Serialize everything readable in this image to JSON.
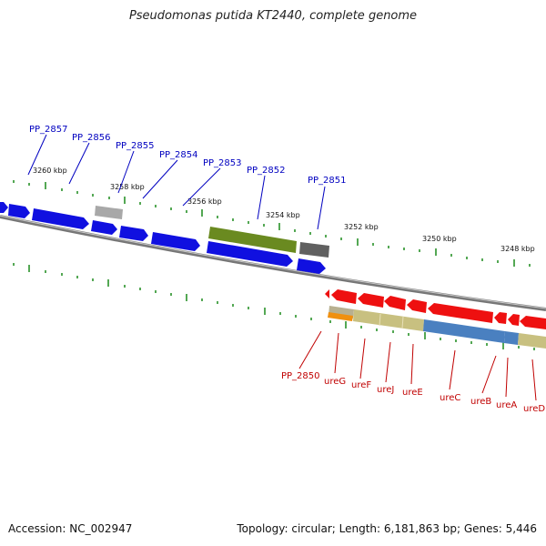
{
  "title": "Pseudomonas putida KT2440, complete genome",
  "footer": {
    "accession": "Accession: NC_002947",
    "summary": "Topology: circular; Length: 6,181,863 bp; Genes: 5,446"
  },
  "scale_labels": [
    "3260 kbp",
    "3258 kbp",
    "3256 kbp",
    "3254 kbp",
    "3252 kbp",
    "3250 kbp",
    "3248 kbp"
  ],
  "upper_gene_labels": [
    "PP_2857",
    "PP_2856",
    "PP_2855",
    "PP_2854",
    "PP_2853",
    "PP_2852",
    "PP_2851"
  ],
  "lower_gene_labels": [
    "PP_2850",
    "ureG",
    "ureF",
    "ureJ",
    "ureE",
    "ureC",
    "ureB",
    "ureA",
    "ureD"
  ],
  "colors": {
    "forward_gene": "#1010e0",
    "reverse_gene": "#ee1010",
    "grey_gene": "#a8a8a8",
    "dark_grey_gene": "#606060",
    "green_gene": "#6a8a20",
    "khaki_feature": "#c8c080",
    "blue_feature": "#4a80c0",
    "orange_feature": "#f09010",
    "backbone": "#888888",
    "tick": "#1a8a1a",
    "upper_label": "#0000c0",
    "lower_label": "#c00000"
  }
}
